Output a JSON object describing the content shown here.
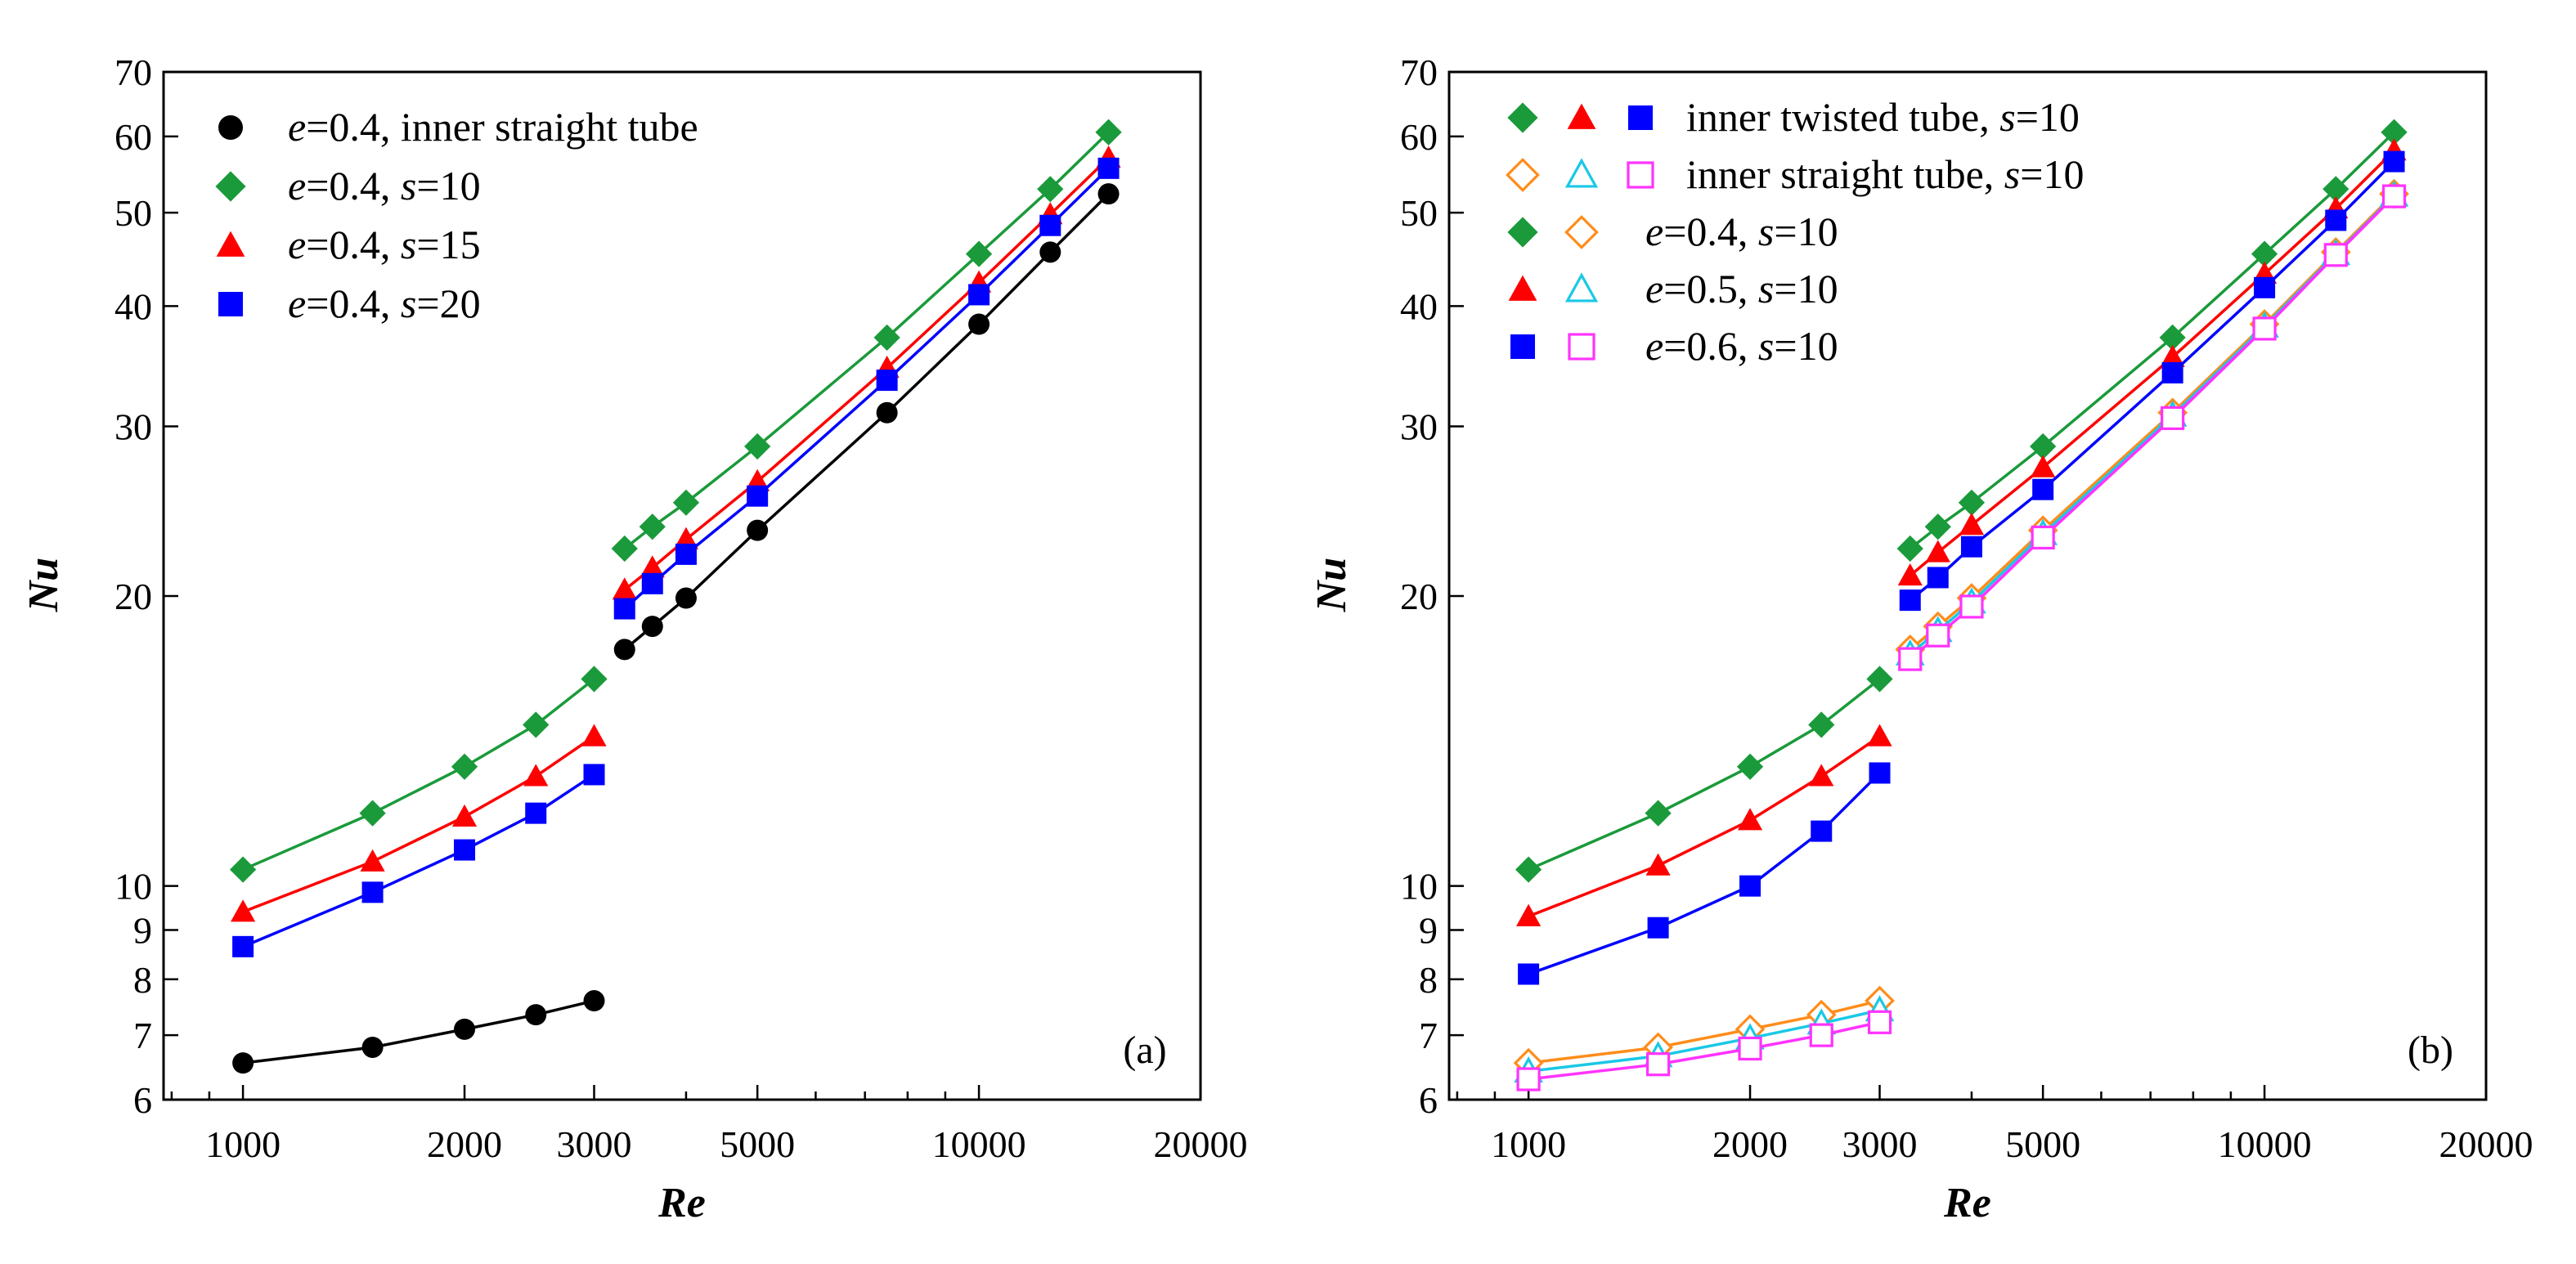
{
  "chart_data": [
    {
      "type": "line",
      "panel_label": "(a)",
      "xlabel": "Re",
      "ylabel": "Nu",
      "xscale": "log",
      "yscale": "log",
      "xlim": [
        780,
        20000
      ],
      "ylim": [
        6,
        70
      ],
      "xticks": [
        1000,
        2000,
        3000,
        5000,
        10000,
        20000
      ],
      "yticks": [
        6,
        7,
        8,
        9,
        10,
        20,
        30,
        40,
        50,
        60,
        70
      ],
      "legend_position": "top-left",
      "series": [
        {
          "name": "black",
          "color": "#000000",
          "marker": "circle",
          "filled": true,
          "legend": {
            "e": "e",
            "e_val": "=0.4, ",
            "rest": "inner straight tube"
          },
          "segments": [
            {
              "x": [
                1000,
                1500,
                2000,
                2500,
                3000
              ],
              "y": [
                6.55,
                6.8,
                7.1,
                7.35,
                7.6
              ]
            },
            {
              "x": [
                3300,
                3600,
                4000,
                5000,
                7500,
                10000,
                12500,
                15000
              ],
              "y": [
                17.6,
                18.6,
                19.9,
                23.4,
                31.0,
                38.3,
                45.5,
                52.3
              ]
            }
          ]
        },
        {
          "name": "green",
          "color": "#1a9a3a",
          "marker": "diamond",
          "filled": true,
          "legend": {
            "e": "e",
            "e_val": "=0.4, ",
            "s": "s",
            "s_val": "=10"
          },
          "segments": [
            {
              "x": [
                1000,
                1500,
                2000,
                2500,
                3000
              ],
              "y": [
                10.4,
                11.9,
                13.3,
                14.7,
                16.4
              ]
            },
            {
              "x": [
                3300,
                3600,
                4000,
                5000,
                7500,
                10000,
                12500,
                15000
              ],
              "y": [
                22.4,
                23.6,
                25.0,
                28.6,
                37.1,
                45.3,
                52.9,
                60.6
              ]
            }
          ]
        },
        {
          "name": "red",
          "color": "#ff0000",
          "marker": "triangle",
          "filled": true,
          "legend": {
            "e": "e",
            "e_val": "=0.4, ",
            "s": "s",
            "s_val": "=15"
          },
          "segments": [
            {
              "x": [
                1000,
                1500,
                2000,
                2500,
                3000
              ],
              "y": [
                9.4,
                10.6,
                11.8,
                13.0,
                14.3
              ]
            },
            {
              "x": [
                3300,
                3600,
                4000,
                5000,
                7500,
                10000,
                12500,
                15000
              ],
              "y": [
                20.3,
                21.4,
                22.9,
                26.3,
                34.5,
                42.3,
                49.8,
                57.0
              ]
            }
          ]
        },
        {
          "name": "blue",
          "color": "#0000ff",
          "marker": "square",
          "filled": true,
          "legend": {
            "e": "e",
            "e_val": "=0.4, ",
            "s": "s",
            "s_val": "=20"
          },
          "segments": [
            {
              "x": [
                1000,
                1500,
                2000,
                2500,
                3000
              ],
              "y": [
                8.65,
                9.85,
                10.9,
                11.9,
                13.05
              ]
            },
            {
              "x": [
                3300,
                3600,
                4000,
                5000,
                7500,
                10000,
                12500,
                15000
              ],
              "y": [
                19.4,
                20.6,
                22.1,
                25.4,
                33.5,
                41.1,
                48.5,
                55.6
              ]
            }
          ]
        }
      ]
    },
    {
      "type": "line",
      "panel_label": "(b)",
      "xlabel": "Re",
      "ylabel": "Nu",
      "xscale": "log",
      "yscale": "log",
      "xlim": [
        780,
        20000
      ],
      "ylim": [
        6,
        70
      ],
      "xticks": [
        1000,
        2000,
        3000,
        5000,
        10000,
        20000
      ],
      "yticks": [
        6,
        7,
        8,
        9,
        10,
        20,
        30,
        40,
        50,
        60,
        70
      ],
      "legend_position": "top-left",
      "legend_rows": [
        {
          "markers": [
            [
              "diamond",
              "#1a9a3a",
              true
            ],
            [
              "triangle",
              "#ff0000",
              true
            ],
            [
              "square",
              "#0000ff",
              true
            ]
          ],
          "parts": [
            "inner twisted tube, ",
            "s",
            "=10"
          ]
        },
        {
          "markers": [
            [
              "diamond",
              "#ff8c1a",
              false
            ],
            [
              "triangle",
              "#1ac8e6",
              false
            ],
            [
              "square",
              "#ff33ff",
              false
            ]
          ],
          "parts": [
            "inner straight tube, ",
            "s",
            "=10"
          ]
        },
        {
          "markers": [
            [
              "diamond",
              "#1a9a3a",
              true
            ],
            [
              "diamond",
              "#ff8c1a",
              false
            ]
          ],
          "parts": [
            "e",
            "=0.4, ",
            "s",
            "=10"
          ]
        },
        {
          "markers": [
            [
              "triangle",
              "#ff0000",
              true
            ],
            [
              "triangle",
              "#1ac8e6",
              false
            ]
          ],
          "parts": [
            "e",
            "=0.5, ",
            "s",
            "=10"
          ]
        },
        {
          "markers": [
            [
              "square",
              "#0000ff",
              true
            ],
            [
              "square",
              "#ff33ff",
              false
            ]
          ],
          "parts": [
            "e",
            "=0.6, ",
            "s",
            "=10"
          ]
        }
      ],
      "series": [
        {
          "name": "twisted e=0.4",
          "color": "#1a9a3a",
          "marker": "diamond",
          "filled": true,
          "segments": [
            {
              "x": [
                1000,
                1500,
                2000,
                2500,
                3000
              ],
              "y": [
                10.4,
                11.9,
                13.3,
                14.7,
                16.4
              ]
            },
            {
              "x": [
                3300,
                3600,
                4000,
                5000,
                7500,
                10000,
                12500,
                15000
              ],
              "y": [
                22.4,
                23.6,
                25.0,
                28.6,
                37.1,
                45.3,
                52.9,
                60.6
              ]
            }
          ]
        },
        {
          "name": "twisted e=0.5",
          "color": "#ff0000",
          "marker": "triangle",
          "filled": true,
          "segments": [
            {
              "x": [
                1000,
                1500,
                2000,
                2500,
                3000
              ],
              "y": [
                9.3,
                10.5,
                11.7,
                13.0,
                14.3
              ]
            },
            {
              "x": [
                3300,
                3600,
                4000,
                5000,
                7500,
                10000,
                12500,
                15000
              ],
              "y": [
                21.0,
                22.2,
                23.7,
                27.2,
                35.4,
                43.2,
                50.5,
                58.0
              ]
            }
          ]
        },
        {
          "name": "twisted e=0.6",
          "color": "#0000ff",
          "marker": "square",
          "filled": true,
          "segments": [
            {
              "x": [
                1000,
                1500,
                2000,
                2500,
                3000
              ],
              "y": [
                8.1,
                9.05,
                10.0,
                11.4,
                13.1
              ]
            },
            {
              "x": [
                3300,
                3600,
                4000,
                5000,
                7500,
                10000,
                12500,
                15000
              ],
              "y": [
                19.8,
                20.9,
                22.5,
                25.8,
                34.1,
                41.8,
                49.1,
                56.5
              ]
            }
          ]
        },
        {
          "name": "straight e=0.4",
          "color": "#ff8c1a",
          "marker": "diamond",
          "filled": false,
          "segments": [
            {
              "x": [
                1000,
                1500,
                2000,
                2500,
                3000
              ],
              "y": [
                6.55,
                6.8,
                7.1,
                7.35,
                7.6
              ]
            },
            {
              "x": [
                3300,
                3600,
                4000,
                5000,
                7500,
                10000,
                12500,
                15000
              ],
              "y": [
                17.6,
                18.6,
                19.9,
                23.4,
                31.0,
                38.3,
                45.5,
                52.3
              ]
            }
          ]
        },
        {
          "name": "straight e=0.5",
          "color": "#1ac8e6",
          "marker": "triangle",
          "filled": false,
          "segments": [
            {
              "x": [
                1000,
                1500,
                2000,
                2500,
                3000
              ],
              "y": [
                6.42,
                6.66,
                6.95,
                7.2,
                7.43
              ]
            },
            {
              "x": [
                3300,
                3600,
                4000,
                5000,
                7500,
                10000,
                12500,
                15000
              ],
              "y": [
                17.4,
                18.4,
                19.7,
                23.2,
                30.8,
                38.1,
                45.3,
                52.1
              ]
            }
          ]
        },
        {
          "name": "straight e=0.6",
          "color": "#ff33ff",
          "marker": "square",
          "filled": false,
          "segments": [
            {
              "x": [
                1000,
                1500,
                2000,
                2500,
                3000
              ],
              "y": [
                6.3,
                6.53,
                6.78,
                7.0,
                7.22
              ]
            },
            {
              "x": [
                3300,
                3600,
                4000,
                5000,
                7500,
                10000,
                12500,
                15000
              ],
              "y": [
                17.2,
                18.2,
                19.5,
                23.0,
                30.6,
                37.9,
                45.2,
                52.0
              ]
            }
          ]
        }
      ]
    }
  ]
}
